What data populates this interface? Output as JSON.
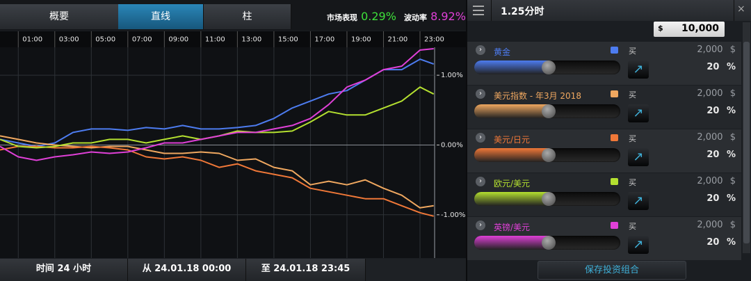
{
  "tabs": [
    "概要",
    "直线",
    "柱"
  ],
  "stats": {
    "market_label": "市场表现",
    "market_value": "0.29%",
    "volatility_label": "波动率",
    "volatility_value": "8.92%"
  },
  "chart_data": {
    "type": "line",
    "x": [
      0,
      1,
      2,
      3,
      4,
      5,
      6,
      7,
      8,
      9,
      10,
      11,
      12,
      13,
      14,
      15,
      16,
      17,
      18,
      19,
      20,
      21,
      22,
      23,
      23.75
    ],
    "xlim": [
      0,
      23.8
    ],
    "xticks": [
      {
        "value": 1,
        "label": "01:00"
      },
      {
        "value": 3,
        "label": "03:00"
      },
      {
        "value": 5,
        "label": "05:00"
      },
      {
        "value": 7,
        "label": "07:00"
      },
      {
        "value": 9,
        "label": "09:00"
      },
      {
        "value": 11,
        "label": "11:00"
      },
      {
        "value": 13,
        "label": "13:00"
      },
      {
        "value": 15,
        "label": "15:00"
      },
      {
        "value": 17,
        "label": "17:00"
      },
      {
        "value": 19,
        "label": "19:00"
      },
      {
        "value": 21,
        "label": "21:00"
      },
      {
        "value": 23,
        "label": "23:00"
      }
    ],
    "ylim": [
      -1.62,
      1.4
    ],
    "yticks": [
      {
        "value": 1,
        "label": "1.00%"
      },
      {
        "value": 0,
        "label": "0.00%"
      },
      {
        "value": -1,
        "label": "-1.00%"
      }
    ],
    "grid": true,
    "series": [
      {
        "name": "黄金",
        "color": "#4d7cf0",
        "values": [
          0.08,
          0.03,
          -0.02,
          0.03,
          0.18,
          0.23,
          0.23,
          0.21,
          0.25,
          0.23,
          0.28,
          0.23,
          0.23,
          0.25,
          0.28,
          0.38,
          0.53,
          0.63,
          0.73,
          0.78,
          0.93,
          1.08,
          1.08,
          1.23,
          1.16
        ]
      },
      {
        "name": "美元指数 - 年3月 2018",
        "color": "#f0a860",
        "values": [
          0.13,
          0.08,
          0.03,
          0.0,
          -0.02,
          -0.04,
          -0.02,
          -0.02,
          -0.07,
          -0.12,
          -0.12,
          -0.1,
          -0.12,
          -0.22,
          -0.2,
          -0.32,
          -0.37,
          -0.57,
          -0.52,
          -0.57,
          -0.5,
          -0.62,
          -0.72,
          -0.9,
          -0.87
        ]
      },
      {
        "name": "美元/日元",
        "color": "#f07838",
        "values": [
          -0.07,
          -0.02,
          -0.02,
          -0.04,
          -0.04,
          -0.02,
          -0.04,
          -0.07,
          -0.17,
          -0.2,
          -0.17,
          -0.22,
          -0.32,
          -0.27,
          -0.37,
          -0.42,
          -0.47,
          -0.62,
          -0.67,
          -0.72,
          -0.77,
          -0.77,
          -0.87,
          -0.97,
          -1.02
        ]
      },
      {
        "name": "欧元/美元",
        "color": "#b4e030",
        "values": [
          0.08,
          -0.02,
          -0.04,
          -0.02,
          0.03,
          0.03,
          0.08,
          0.08,
          0.03,
          0.08,
          0.13,
          0.08,
          0.13,
          0.2,
          0.18,
          0.18,
          0.2,
          0.33,
          0.48,
          0.43,
          0.43,
          0.53,
          0.63,
          0.83,
          0.73
        ]
      },
      {
        "name": "英镑/美元",
        "color": "#e040d8",
        "values": [
          -0.02,
          -0.17,
          -0.22,
          -0.17,
          -0.14,
          -0.1,
          -0.12,
          -0.1,
          -0.04,
          0.03,
          0.03,
          0.08,
          0.13,
          0.18,
          0.18,
          0.23,
          0.28,
          0.38,
          0.58,
          0.83,
          0.93,
          1.08,
          1.13,
          1.36,
          1.38
        ]
      }
    ]
  },
  "footer": {
    "period": "时间 24 小时",
    "from": "从 24.01.18 00:00",
    "to": "至 24.01.18 23:45"
  },
  "panel": {
    "title": "1.25分时",
    "currency": "$",
    "amount": "10,000",
    "rows": [
      {
        "action": "买",
        "amount": "2,000",
        "currency": "$",
        "percent": 20,
        "percent_unit": "%"
      },
      {
        "action": "买",
        "amount": "2,000",
        "currency": "$",
        "percent": 20,
        "percent_unit": "%"
      },
      {
        "action": "买",
        "amount": "2,000",
        "currency": "$",
        "percent": 20,
        "percent_unit": "%"
      },
      {
        "action": "买",
        "amount": "2,000",
        "currency": "$",
        "percent": 20,
        "percent_unit": "%"
      },
      {
        "action": "买",
        "amount": "2,000",
        "currency": "$",
        "percent": 20,
        "percent_unit": "%"
      }
    ],
    "save_button": "保存投资组合"
  }
}
